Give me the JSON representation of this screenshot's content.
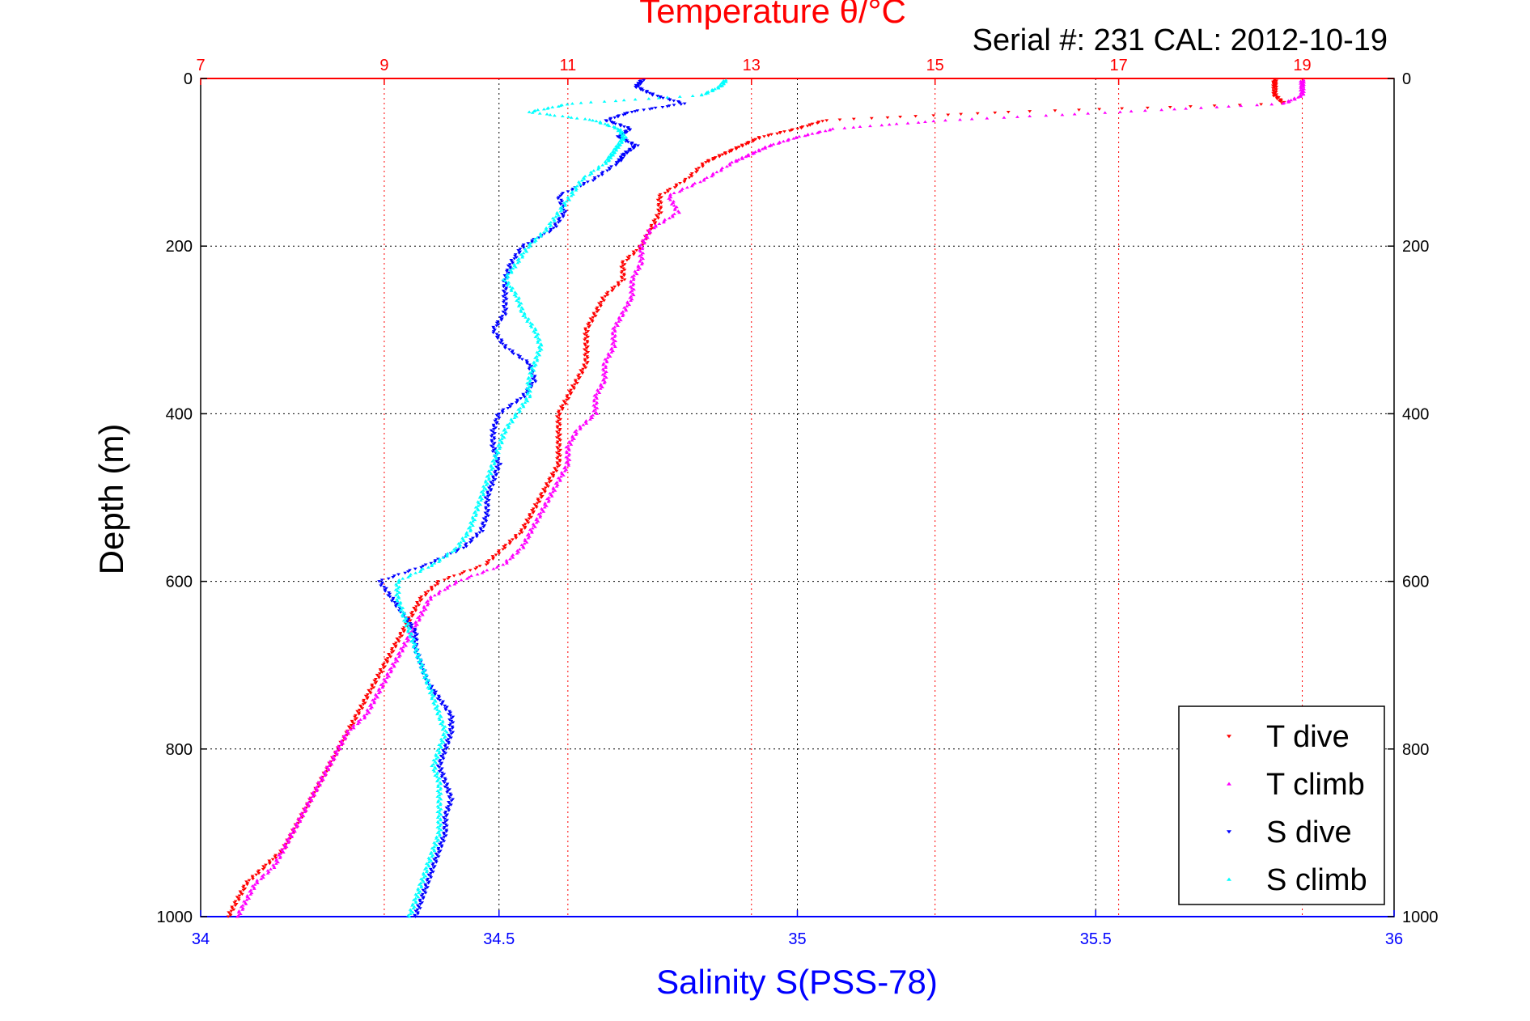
{
  "chart_data": {
    "type": "scatter",
    "title": "Temperature θ/°C",
    "subtitle": "Serial #: 231  CAL: 2012-10-19",
    "xlabel": "Salinity S(PSS-78)",
    "ylabel": "Depth (m)",
    "top_xlabel": "Temperature θ/°C",
    "xlim": [
      34,
      36
    ],
    "top_xlim": [
      7,
      20
    ],
    "ylim": [
      0,
      1000
    ],
    "x_ticks": [
      "34",
      "34.5",
      "35",
      "35.5",
      "36"
    ],
    "top_ticks": [
      "7",
      "9",
      "11",
      "13",
      "15",
      "17",
      "19"
    ],
    "y_ticks": [
      "0",
      "200",
      "400",
      "600",
      "800",
      "1000"
    ],
    "grid": true,
    "legend_position": "bottom-right",
    "series": [
      {
        "name": "T dive",
        "axis": "top",
        "marker": "triangle-down",
        "color": "#ff0000",
        "depth": [
          2,
          10,
          20,
          30,
          40,
          50,
          60,
          70,
          80,
          90,
          100,
          120,
          140,
          160,
          180,
          200,
          220,
          240,
          260,
          280,
          300,
          320,
          340,
          360,
          380,
          400,
          420,
          440,
          460,
          480,
          500,
          520,
          540,
          560,
          580,
          600,
          620,
          640,
          660,
          680,
          700,
          720,
          740,
          760,
          780,
          800,
          820,
          840,
          860,
          880,
          900,
          920,
          940,
          960,
          980,
          1000
        ],
        "temp": [
          18.7,
          18.7,
          18.7,
          18.8,
          15.8,
          13.8,
          13.5,
          13.1,
          12.9,
          12.7,
          12.5,
          12.3,
          12.0,
          12.0,
          11.9,
          11.8,
          11.6,
          11.6,
          11.4,
          11.3,
          11.2,
          11.2,
          11.2,
          11.1,
          11.0,
          10.9,
          10.9,
          10.9,
          10.9,
          10.8,
          10.7,
          10.6,
          10.5,
          10.3,
          10.1,
          9.6,
          9.4,
          9.3,
          9.2,
          9.1,
          9.0,
          8.9,
          8.8,
          8.7,
          8.6,
          8.5,
          8.4,
          8.3,
          8.2,
          8.1,
          8.0,
          7.9,
          7.7,
          7.5,
          7.4,
          7.3
        ]
      },
      {
        "name": "T climb",
        "axis": "top",
        "marker": "triangle-up",
        "color": "#ff00ff",
        "depth": [
          2,
          10,
          20,
          30,
          40,
          50,
          60,
          70,
          80,
          90,
          100,
          120,
          140,
          160,
          180,
          200,
          220,
          240,
          260,
          280,
          300,
          320,
          340,
          360,
          380,
          400,
          420,
          440,
          460,
          480,
          500,
          520,
          540,
          560,
          580,
          600,
          620,
          640,
          660,
          680,
          700,
          720,
          740,
          760,
          780,
          800,
          820,
          840,
          860,
          880,
          900,
          920,
          940,
          960,
          980,
          1000
        ],
        "temp": [
          19.0,
          19.0,
          19.0,
          18.8,
          17.0,
          15.1,
          13.9,
          13.5,
          13.2,
          13.0,
          12.8,
          12.5,
          12.1,
          12.2,
          11.9,
          11.8,
          11.8,
          11.7,
          11.7,
          11.6,
          11.5,
          11.5,
          11.4,
          11.4,
          11.3,
          11.3,
          11.1,
          11.0,
          11.0,
          10.9,
          10.8,
          10.7,
          10.6,
          10.5,
          10.3,
          9.8,
          9.5,
          9.4,
          9.3,
          9.2,
          9.1,
          9.0,
          8.9,
          8.8,
          8.6,
          8.5,
          8.4,
          8.3,
          8.2,
          8.1,
          8.0,
          7.9,
          7.8,
          7.6,
          7.5,
          7.4
        ]
      },
      {
        "name": "S dive",
        "axis": "bottom",
        "marker": "triangle-down",
        "color": "#0000ff",
        "depth": [
          2,
          10,
          20,
          30,
          40,
          50,
          60,
          70,
          80,
          90,
          100,
          120,
          140,
          160,
          180,
          200,
          220,
          240,
          260,
          280,
          300,
          320,
          340,
          360,
          380,
          400,
          420,
          440,
          460,
          480,
          500,
          520,
          540,
          560,
          580,
          600,
          620,
          640,
          660,
          680,
          700,
          720,
          740,
          760,
          780,
          800,
          820,
          840,
          860,
          880,
          900,
          920,
          940,
          960,
          980,
          1000
        ],
        "sal": [
          34.74,
          34.73,
          34.76,
          34.81,
          34.72,
          34.68,
          34.72,
          34.7,
          34.73,
          34.71,
          34.7,
          34.66,
          34.6,
          34.61,
          34.59,
          34.54,
          34.52,
          34.51,
          34.51,
          34.51,
          34.49,
          34.51,
          34.55,
          34.56,
          34.54,
          34.5,
          34.49,
          34.49,
          34.5,
          34.49,
          34.48,
          34.48,
          34.47,
          34.44,
          34.38,
          34.3,
          34.32,
          34.34,
          34.36,
          34.36,
          34.37,
          34.38,
          34.4,
          34.42,
          34.42,
          34.41,
          34.4,
          34.41,
          34.42,
          34.41,
          34.41,
          34.4,
          34.39,
          34.38,
          34.37,
          34.36
        ]
      },
      {
        "name": "S climb",
        "axis": "bottom",
        "marker": "triangle-up",
        "color": "#00ffff",
        "depth": [
          2,
          10,
          20,
          30,
          40,
          50,
          60,
          70,
          80,
          90,
          100,
          120,
          140,
          160,
          180,
          200,
          220,
          240,
          260,
          280,
          300,
          320,
          340,
          360,
          380,
          400,
          420,
          440,
          460,
          480,
          500,
          520,
          540,
          560,
          580,
          600,
          620,
          640,
          660,
          680,
          700,
          720,
          740,
          760,
          780,
          800,
          820,
          840,
          860,
          880,
          900,
          920,
          940,
          960,
          980,
          1000
        ],
        "sal": [
          34.88,
          34.87,
          34.84,
          34.62,
          34.55,
          34.66,
          34.7,
          34.71,
          34.7,
          34.69,
          34.68,
          34.64,
          34.62,
          34.6,
          34.58,
          34.55,
          34.53,
          34.51,
          34.53,
          34.54,
          34.56,
          34.57,
          34.56,
          34.55,
          34.55,
          34.53,
          34.51,
          34.5,
          34.49,
          34.48,
          34.47,
          34.46,
          34.45,
          34.43,
          34.39,
          34.33,
          34.33,
          34.34,
          34.35,
          34.36,
          34.37,
          34.38,
          34.39,
          34.4,
          34.41,
          34.4,
          34.39,
          34.4,
          34.4,
          34.4,
          34.4,
          34.39,
          34.38,
          34.37,
          34.36,
          34.35
        ]
      }
    ]
  }
}
